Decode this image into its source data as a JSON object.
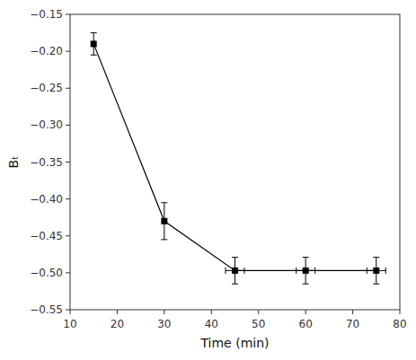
{
  "chart_data": {
    "type": "line",
    "xlabel": "Time (min)",
    "ylabel": "Bₜ",
    "x": [
      15,
      30,
      45,
      60,
      75
    ],
    "series": [
      {
        "color": "black",
        "marker": "square",
        "values": [
          -0.19,
          -0.43,
          -0.497,
          -0.497,
          -0.497
        ],
        "yerr": [
          0.015,
          0.025,
          0.018,
          0.018,
          0.018
        ],
        "xerr": [
          0,
          0,
          2,
          2,
          2
        ]
      }
    ],
    "xlim": [
      10,
      80
    ],
    "ylim": [
      -0.55,
      -0.15
    ],
    "xticks": [
      10,
      20,
      30,
      40,
      50,
      60,
      70,
      80
    ],
    "yticks": [
      {
        "value": -0.55,
        "label": "−0.55"
      },
      {
        "value": -0.5,
        "label": "−0.50"
      },
      {
        "value": -0.45,
        "label": "−0.45"
      },
      {
        "value": -0.4,
        "label": "−0.40"
      },
      {
        "value": -0.35,
        "label": "−0.35"
      },
      {
        "value": -0.3,
        "label": "−0.30"
      },
      {
        "value": -0.25,
        "label": "−0.25"
      },
      {
        "value": -0.2,
        "label": "−0.20"
      },
      {
        "value": -0.15,
        "label": "−0.15"
      }
    ],
    "grid": false
  }
}
